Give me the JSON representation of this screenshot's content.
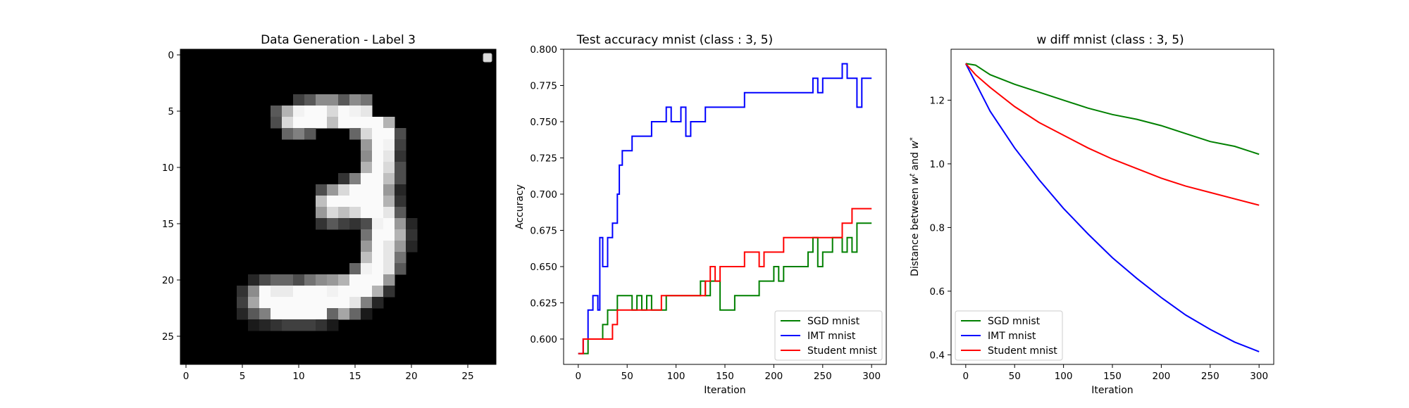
{
  "chart_data": [
    {
      "type": "heatmap",
      "title": "Data Generation - Label 3",
      "xlabel": "",
      "ylabel": "",
      "xlim": [
        -0.5,
        27.5
      ],
      "ylim": [
        27.5,
        -0.5
      ],
      "xticks": [
        0,
        5,
        10,
        15,
        20,
        25
      ],
      "yticks": [
        0,
        5,
        10,
        15,
        20,
        25
      ],
      "colormap": "gray",
      "legend": "empty box, top-right",
      "pixels": [
        {
          "row": 4,
          "cols": [
            10,
            11,
            12,
            13,
            14,
            15,
            16
          ],
          "values": [
            0.25,
            0.35,
            0.55,
            0.55,
            0.35,
            0.55,
            0.45
          ]
        },
        {
          "row": 5,
          "cols": [
            8,
            9,
            10,
            11,
            12,
            13,
            14,
            15,
            16
          ],
          "values": [
            0.35,
            0.7,
            0.95,
            0.98,
            0.98,
            0.85,
            0.98,
            0.95,
            0.9
          ]
        },
        {
          "row": 6,
          "cols": [
            8,
            9,
            10,
            11,
            12,
            13,
            14,
            15,
            16,
            17,
            18
          ],
          "values": [
            0.3,
            0.85,
            0.98,
            0.98,
            0.98,
            0.75,
            0.98,
            0.98,
            0.98,
            0.98,
            0.7
          ]
        },
        {
          "row": 7,
          "cols": [
            9,
            10,
            11,
            15,
            16,
            17,
            18,
            19
          ],
          "values": [
            0.4,
            0.5,
            0.35,
            0.4,
            0.85,
            0.98,
            0.98,
            0.3
          ]
        },
        {
          "row": 8,
          "cols": [
            16,
            17,
            18,
            19
          ],
          "values": [
            0.6,
            0.98,
            0.95,
            0.25
          ]
        },
        {
          "row": 9,
          "cols": [
            16,
            17,
            18,
            19
          ],
          "values": [
            0.55,
            0.98,
            0.9,
            0.2
          ]
        },
        {
          "row": 10,
          "cols": [
            16,
            17,
            18,
            19
          ],
          "values": [
            0.7,
            0.98,
            0.85,
            0.3
          ]
        },
        {
          "row": 11,
          "cols": [
            14,
            15,
            16,
            17,
            18,
            19
          ],
          "values": [
            0.2,
            0.5,
            0.98,
            0.98,
            0.75,
            0.3
          ]
        },
        {
          "row": 12,
          "cols": [
            12,
            13,
            14,
            15,
            16,
            17,
            18,
            19
          ],
          "values": [
            0.3,
            0.6,
            0.85,
            0.98,
            0.98,
            0.98,
            0.6,
            0.15
          ]
        },
        {
          "row": 13,
          "cols": [
            12,
            13,
            14,
            15,
            16,
            17,
            18,
            19
          ],
          "values": [
            0.75,
            0.98,
            0.98,
            0.98,
            0.98,
            0.98,
            0.7,
            0.2
          ]
        },
        {
          "row": 14,
          "cols": [
            12,
            13,
            14,
            15,
            16,
            17,
            18,
            19
          ],
          "values": [
            0.6,
            0.85,
            0.75,
            0.85,
            0.98,
            0.98,
            0.9,
            0.35
          ]
        },
        {
          "row": 15,
          "cols": [
            12,
            13,
            14,
            15,
            16,
            17,
            18,
            19,
            20
          ],
          "values": [
            0.2,
            0.35,
            0.25,
            0.2,
            0.3,
            0.95,
            0.98,
            0.6,
            0.15
          ]
        },
        {
          "row": 16,
          "cols": [
            16,
            17,
            18,
            19,
            20
          ],
          "values": [
            0.45,
            0.98,
            0.98,
            0.7,
            0.2
          ]
        },
        {
          "row": 17,
          "cols": [
            16,
            17,
            18,
            19,
            20
          ],
          "values": [
            0.6,
            0.98,
            0.9,
            0.6,
            0.15
          ]
        },
        {
          "row": 18,
          "cols": [
            16,
            17,
            18,
            19
          ],
          "values": [
            0.75,
            0.98,
            0.9,
            0.45
          ]
        },
        {
          "row": 19,
          "cols": [
            15,
            16,
            17,
            18,
            19
          ],
          "values": [
            0.4,
            0.95,
            0.98,
            0.9,
            0.35
          ]
        },
        {
          "row": 20,
          "cols": [
            6,
            7,
            8,
            9,
            10,
            11,
            12,
            13,
            14,
            15,
            16,
            17,
            18
          ],
          "values": [
            0.15,
            0.3,
            0.4,
            0.4,
            0.3,
            0.45,
            0.55,
            0.6,
            0.7,
            0.98,
            0.98,
            0.98,
            0.6
          ]
        },
        {
          "row": 21,
          "cols": [
            5,
            6,
            7,
            8,
            9,
            10,
            11,
            12,
            13,
            14,
            15,
            16,
            17,
            18
          ],
          "values": [
            0.2,
            0.55,
            0.98,
            0.92,
            0.92,
            0.98,
            0.98,
            0.98,
            0.95,
            0.98,
            0.98,
            0.98,
            0.7,
            0.2
          ]
        },
        {
          "row": 22,
          "cols": [
            5,
            6,
            7,
            8,
            9,
            10,
            11,
            12,
            13,
            14,
            15,
            16,
            17
          ],
          "values": [
            0.25,
            0.65,
            0.98,
            0.98,
            0.98,
            0.98,
            0.98,
            0.98,
            0.98,
            0.98,
            0.9,
            0.5,
            0.15
          ]
        },
        {
          "row": 23,
          "cols": [
            5,
            6,
            7,
            8,
            9,
            10,
            11,
            12,
            13,
            14,
            15,
            16
          ],
          "values": [
            0.15,
            0.35,
            0.5,
            0.98,
            0.98,
            0.98,
            0.98,
            0.98,
            0.4,
            0.65,
            0.4,
            0.1
          ]
        },
        {
          "row": 24,
          "cols": [
            6,
            7,
            8,
            9,
            10,
            11,
            12,
            13
          ],
          "values": [
            0.1,
            0.15,
            0.2,
            0.25,
            0.25,
            0.25,
            0.2,
            0.1
          ]
        }
      ]
    },
    {
      "type": "line",
      "title": "Test accuracy mnist (class : 3, 5)",
      "xlabel": "Iteration",
      "ylabel": "Accuracy",
      "xlim": [
        -15,
        315
      ],
      "ylim": [
        0.5825,
        0.8
      ],
      "xticks": [
        0,
        50,
        100,
        150,
        200,
        250,
        300
      ],
      "yticks": [
        0.6,
        0.625,
        0.65,
        0.675,
        0.7,
        0.725,
        0.75,
        0.775,
        0.8
      ],
      "grid": false,
      "legend": "bottom-right",
      "step": true,
      "series": [
        {
          "name": "SGD mnist",
          "color": "#008000",
          "x": [
            0,
            5,
            10,
            15,
            20,
            25,
            30,
            35,
            40,
            45,
            50,
            55,
            60,
            65,
            70,
            75,
            80,
            85,
            90,
            95,
            100,
            105,
            110,
            115,
            120,
            125,
            130,
            135,
            140,
            145,
            150,
            155,
            160,
            165,
            170,
            175,
            180,
            185,
            190,
            195,
            200,
            205,
            210,
            215,
            220,
            225,
            230,
            235,
            240,
            245,
            250,
            255,
            260,
            265,
            270,
            275,
            280,
            285,
            290,
            295,
            300
          ],
          "values": [
            0.59,
            0.59,
            0.6,
            0.6,
            0.6,
            0.61,
            0.62,
            0.62,
            0.63,
            0.63,
            0.63,
            0.62,
            0.63,
            0.62,
            0.63,
            0.62,
            0.62,
            0.62,
            0.63,
            0.63,
            0.63,
            0.63,
            0.63,
            0.63,
            0.63,
            0.64,
            0.63,
            0.64,
            0.64,
            0.62,
            0.62,
            0.62,
            0.63,
            0.63,
            0.63,
            0.63,
            0.63,
            0.64,
            0.64,
            0.64,
            0.65,
            0.64,
            0.65,
            0.65,
            0.65,
            0.65,
            0.65,
            0.66,
            0.67,
            0.65,
            0.66,
            0.66,
            0.67,
            0.67,
            0.66,
            0.67,
            0.66,
            0.68,
            0.68,
            0.68,
            0.68
          ]
        },
        {
          "name": "IMT mnist",
          "color": "#0000ff",
          "x": [
            0,
            5,
            10,
            15,
            20,
            22,
            25,
            30,
            35,
            40,
            42,
            45,
            50,
            55,
            60,
            65,
            70,
            75,
            80,
            85,
            90,
            95,
            100,
            105,
            110,
            115,
            120,
            125,
            130,
            135,
            140,
            145,
            150,
            155,
            160,
            165,
            170,
            175,
            180,
            185,
            190,
            195,
            200,
            205,
            210,
            215,
            220,
            225,
            230,
            235,
            240,
            245,
            250,
            255,
            260,
            265,
            270,
            275,
            280,
            285,
            290,
            295,
            300
          ],
          "values": [
            0.59,
            0.6,
            0.62,
            0.63,
            0.62,
            0.67,
            0.65,
            0.67,
            0.68,
            0.7,
            0.72,
            0.73,
            0.73,
            0.74,
            0.74,
            0.74,
            0.74,
            0.75,
            0.75,
            0.75,
            0.76,
            0.75,
            0.75,
            0.76,
            0.74,
            0.75,
            0.75,
            0.75,
            0.76,
            0.76,
            0.76,
            0.76,
            0.76,
            0.76,
            0.76,
            0.76,
            0.77,
            0.77,
            0.77,
            0.77,
            0.77,
            0.77,
            0.77,
            0.77,
            0.77,
            0.77,
            0.77,
            0.77,
            0.77,
            0.77,
            0.78,
            0.77,
            0.78,
            0.78,
            0.78,
            0.78,
            0.79,
            0.78,
            0.78,
            0.76,
            0.78,
            0.78,
            0.78
          ]
        },
        {
          "name": "Student mnist",
          "color": "#ff0000",
          "x": [
            0,
            5,
            10,
            15,
            20,
            25,
            30,
            35,
            40,
            45,
            50,
            55,
            60,
            65,
            70,
            75,
            80,
            85,
            90,
            95,
            100,
            105,
            110,
            115,
            120,
            125,
            130,
            135,
            140,
            145,
            150,
            155,
            160,
            165,
            170,
            175,
            180,
            185,
            190,
            195,
            200,
            205,
            210,
            215,
            220,
            225,
            230,
            235,
            240,
            245,
            250,
            255,
            260,
            265,
            270,
            275,
            280,
            285,
            290,
            295,
            300
          ],
          "values": [
            0.59,
            0.6,
            0.6,
            0.6,
            0.6,
            0.6,
            0.6,
            0.61,
            0.62,
            0.62,
            0.62,
            0.62,
            0.62,
            0.62,
            0.62,
            0.62,
            0.62,
            0.63,
            0.63,
            0.63,
            0.63,
            0.63,
            0.63,
            0.63,
            0.63,
            0.63,
            0.64,
            0.65,
            0.64,
            0.65,
            0.65,
            0.65,
            0.65,
            0.65,
            0.66,
            0.66,
            0.66,
            0.65,
            0.66,
            0.66,
            0.66,
            0.66,
            0.67,
            0.67,
            0.67,
            0.67,
            0.67,
            0.67,
            0.67,
            0.67,
            0.67,
            0.67,
            0.67,
            0.67,
            0.68,
            0.68,
            0.69,
            0.69,
            0.69,
            0.69,
            0.69
          ]
        }
      ]
    },
    {
      "type": "line",
      "title": "w diff mnist (class : 3, 5)",
      "xlabel": "Iteration",
      "ylabel": "Distance between w^t and w^*",
      "xlim": [
        -15,
        315
      ],
      "ylim": [
        0.37,
        1.36
      ],
      "xticks": [
        0,
        50,
        100,
        150,
        200,
        250,
        300
      ],
      "yticks": [
        0.4,
        0.6,
        0.8,
        1.0,
        1.2
      ],
      "grid": false,
      "legend": "bottom-left",
      "series": [
        {
          "name": "SGD mnist",
          "color": "#008000",
          "x": [
            0,
            10,
            25,
            50,
            75,
            100,
            125,
            150,
            175,
            200,
            225,
            250,
            275,
            300
          ],
          "values": [
            1.315,
            1.31,
            1.28,
            1.25,
            1.225,
            1.2,
            1.175,
            1.155,
            1.14,
            1.12,
            1.095,
            1.07,
            1.055,
            1.03
          ]
        },
        {
          "name": "IMT mnist",
          "color": "#0000ff",
          "x": [
            0,
            10,
            25,
            50,
            75,
            100,
            125,
            150,
            175,
            200,
            225,
            250,
            275,
            300
          ],
          "values": [
            1.315,
            1.255,
            1.165,
            1.05,
            0.95,
            0.86,
            0.78,
            0.705,
            0.64,
            0.58,
            0.525,
            0.48,
            0.44,
            0.41
          ]
        },
        {
          "name": "Student mnist",
          "color": "#ff0000",
          "x": [
            0,
            10,
            25,
            50,
            75,
            100,
            125,
            150,
            175,
            200,
            225,
            250,
            275,
            300
          ],
          "values": [
            1.315,
            1.28,
            1.24,
            1.18,
            1.13,
            1.09,
            1.05,
            1.015,
            0.985,
            0.955,
            0.93,
            0.91,
            0.89,
            0.87
          ]
        }
      ]
    }
  ]
}
